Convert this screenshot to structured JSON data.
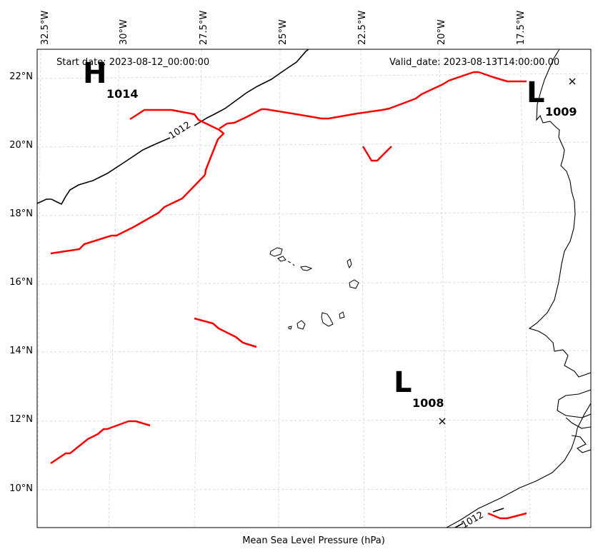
{
  "map": {
    "start_date": "Start date: 2023-08-12_00:00:00",
    "valid_date": "Valid_date: 2023-08-13T14:00:00.00",
    "xlabel": "Mean Sea Level Pressure (hPa)",
    "lon_ticks": [
      "32.5°W",
      "30°W",
      "27.5°W",
      "25°W",
      "22.5°W",
      "20°W",
      "17.5°W"
    ],
    "lat_ticks": [
      "22°N",
      "20°N",
      "18°N",
      "16°N",
      "14°N",
      "12°N",
      "10°N"
    ],
    "contour_labels": [
      "1012",
      "1012"
    ],
    "centers": [
      {
        "letter": "H",
        "value": "1014"
      },
      {
        "letter": "L",
        "value": "1009"
      },
      {
        "letter": "L",
        "value": "1008"
      }
    ],
    "colors": {
      "isobar": "#000000",
      "front": "#ff0000",
      "grid": "#cccccc",
      "coast": "#000000"
    }
  }
}
